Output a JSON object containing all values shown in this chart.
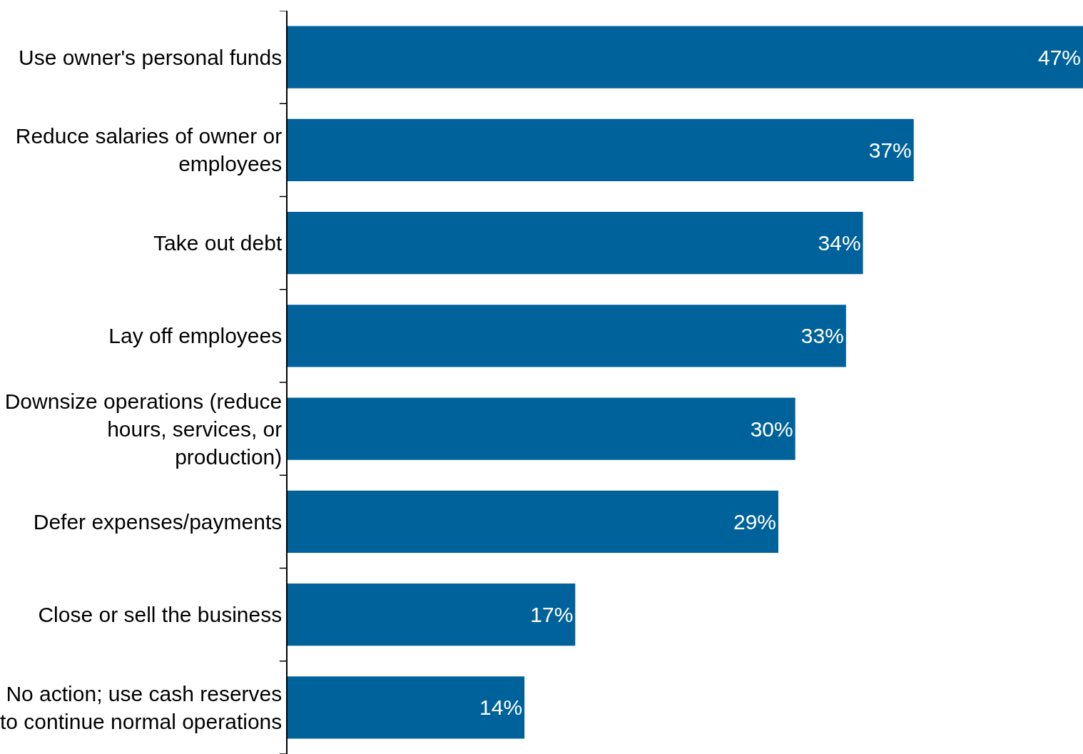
{
  "chart_data": {
    "type": "bar",
    "orientation": "horizontal",
    "data_labels": true,
    "categories": [
      "Use owner's personal funds",
      "Reduce salaries of owner or employees",
      "Take out debt",
      "Lay off employees",
      "Downsize operations (reduce hours, services, or production)",
      "Defer expenses/payments",
      "Close or sell the business",
      "No action; use cash reserves to continue normal operations"
    ],
    "values": [
      47,
      37,
      34,
      33,
      30,
      29,
      17,
      14
    ],
    "value_labels": [
      "47%",
      "37%",
      "34%",
      "33%",
      "30%",
      "29%",
      "17%",
      "14%"
    ],
    "color": "#00629b",
    "xlim": [
      0,
      47
    ],
    "tick_labels": "y"
  }
}
